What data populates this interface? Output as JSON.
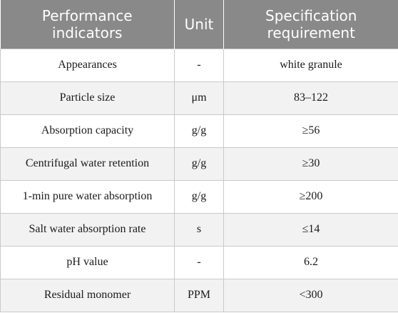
{
  "table": {
    "headers": [
      "Performance indicators",
      "Unit",
      "Specification requirement"
    ],
    "rows": [
      [
        "Appearances",
        "-",
        "white granule"
      ],
      [
        "Particle size",
        "μm",
        "83–122"
      ],
      [
        "Absorption capacity",
        "g/g",
        "≥56"
      ],
      [
        "Centrifugal water retention",
        "g/g",
        "≥30"
      ],
      [
        "1-min pure water absorption",
        "g/g",
        "≥200"
      ],
      [
        "Salt water absorption rate",
        "s",
        "≤14"
      ],
      [
        "pH value",
        "-",
        "6.2"
      ],
      [
        "Residual monomer",
        "PPM",
        "<300"
      ]
    ]
  },
  "colors": {
    "header_bg": "#888988",
    "header_text": "#ffffff",
    "stripe_bg": "#f2f2f2",
    "border": "#c9c9c9"
  }
}
